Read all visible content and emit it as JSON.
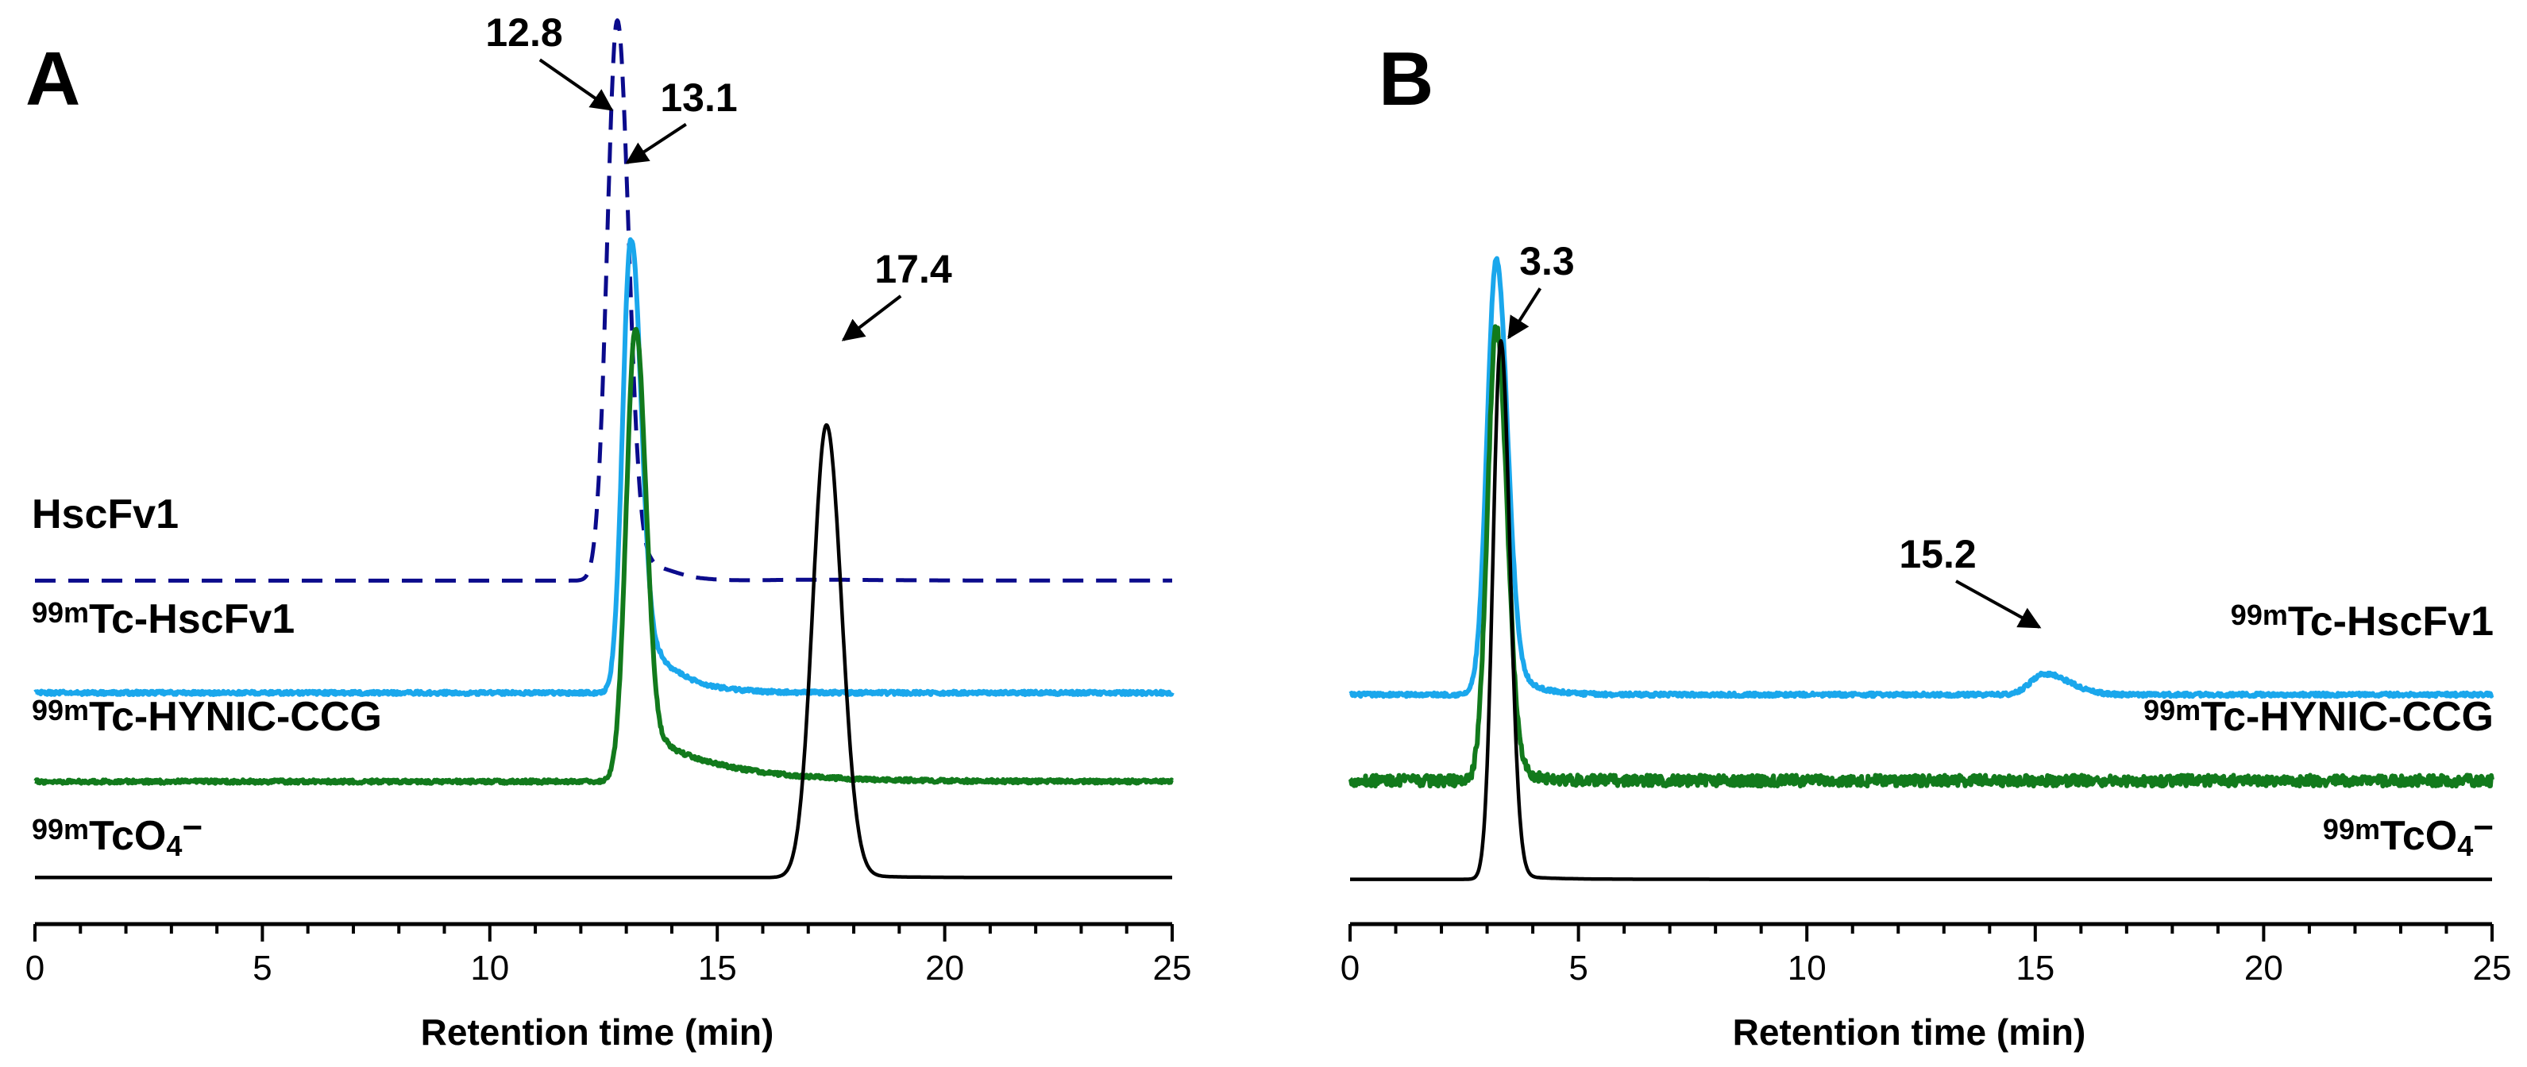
{
  "colors": {
    "HscFv1": "#0b0b8c",
    "99mTc-HscFv1": "#1aa7ec",
    "99mTc-HYNIC-CCG": "#127a1c",
    "99mTcO4": "#000000"
  },
  "chart_data": [
    {
      "panel": "A",
      "type": "line",
      "xlabel": "Retention time (min)",
      "ylabel": "",
      "xlim": [
        0,
        25
      ],
      "ylim": [
        0,
        1
      ],
      "xticks": [
        0,
        5,
        10,
        15,
        20,
        25
      ],
      "xtick_labels": [
        "0",
        "5",
        "10",
        "15",
        "20",
        "25"
      ],
      "series": [
        {
          "key": "hscfv1",
          "label_prefix": "",
          "label_main": "HscFv1",
          "label_sub": "",
          "color_key": "HscFv1",
          "style": "dashed",
          "baseline": 0.376,
          "noise": 0,
          "peaks": [
            {
              "center": 12.8,
              "height": 0.619,
              "width_left": 0.22,
              "width_right": 0.25,
              "tail_height": 0.03,
              "tail_decay": 1.5
            },
            {
              "center": 14.6,
              "height": -0.006,
              "width_left": 0.5,
              "width_right": 1.2,
              "tail_height": 0,
              "tail_decay": 1
            }
          ],
          "x": [
            0,
            12.3,
            12.6,
            12.8,
            13.0,
            13.3,
            13.7,
            14.3,
            15.0,
            16.0,
            18.0,
            20.0,
            25.0
          ],
          "y": [
            0.376,
            0.38,
            0.75,
            0.995,
            0.85,
            0.6,
            0.45,
            0.385,
            0.372,
            0.376,
            0.378,
            0.38,
            0.381
          ]
        },
        {
          "key": "tc_hscfv1",
          "label_prefix": "99m",
          "label_main": "Tc-HscFv1",
          "label_sub": "",
          "color_key": "99mTc-HscFv1",
          "style": "solid",
          "baseline": 0.252,
          "noise": 0.002,
          "peaks": [
            {
              "center": 13.1,
              "height": 0.5,
              "width_left": 0.18,
              "width_right": 0.22,
              "tail_height": 0.1,
              "tail_decay": 0.7
            }
          ],
          "x": [
            0,
            12.4,
            12.8,
            13.1,
            13.5,
            14.0,
            15.0,
            17.0,
            25.0
          ],
          "y": [
            0.252,
            0.26,
            0.6,
            0.752,
            0.55,
            0.33,
            0.26,
            0.25,
            0.248
          ]
        },
        {
          "key": "tc_hynic",
          "label_prefix": "99m",
          "label_main": "Tc-HYNIC-CCG",
          "label_sub": "",
          "color_key": "99mTc-HYNIC-CCG",
          "style": "solid",
          "baseline": 0.154,
          "noise": 0.002,
          "peaks": [
            {
              "center": 13.2,
              "height": 0.5,
              "width_left": 0.2,
              "width_right": 0.23,
              "tail_height": 0.06,
              "tail_decay": 1.6
            }
          ],
          "x": [
            0,
            12.5,
            13.0,
            13.2,
            13.6,
            14.3,
            15.0,
            16.0,
            17.0,
            25.0
          ],
          "y": [
            0.154,
            0.17,
            0.58,
            0.654,
            0.45,
            0.24,
            0.2,
            0.196,
            0.17,
            0.156
          ]
        },
        {
          "key": "tco4",
          "label_prefix": "99m",
          "label_main": "TcO",
          "label_sub": "4",
          "label_suffix": "−",
          "color_key": "99mTcO4",
          "style": "solid",
          "baseline": 0.048,
          "noise": 0,
          "peaks": [
            {
              "center": 17.4,
              "height": 0.5,
              "width_left": 0.3,
              "width_right": 0.33,
              "tail_height": 0.005,
              "tail_decay": 0.8
            }
          ],
          "x": [
            0,
            16.7,
            17.1,
            17.4,
            17.8,
            18.2,
            25.0
          ],
          "y": [
            0.048,
            0.05,
            0.45,
            0.548,
            0.35,
            0.06,
            0.048
          ]
        }
      ],
      "annotations": [
        {
          "text": "12.8",
          "x": 12.8,
          "series": "hscfv1"
        },
        {
          "text": "13.1",
          "x": 13.1,
          "series": "tc_hscfv1"
        },
        {
          "text": "17.4",
          "x": 17.4,
          "series": "tco4"
        }
      ]
    },
    {
      "panel": "B",
      "type": "line",
      "xlabel": "Retention time (min)",
      "ylabel": "",
      "xlim": [
        0,
        25
      ],
      "ylim": [
        0,
        1
      ],
      "xticks": [
        0,
        5,
        10,
        15,
        20,
        25
      ],
      "xtick_labels": [
        "0",
        "5",
        "10",
        "15",
        "20",
        "25"
      ],
      "series": [
        {
          "key": "tc_hscfv1",
          "label_prefix": "99m",
          "label_main": "Tc-HscFv1",
          "label_sub": "",
          "color_key": "99mTc-HscFv1",
          "style": "solid",
          "baseline": 0.25,
          "noise": 0.002,
          "peaks": [
            {
              "center": 3.2,
              "height": 0.48,
              "width_left": 0.2,
              "width_right": 0.24,
              "tail_height": 0.05,
              "tail_decay": 0.5
            },
            {
              "center": 15.2,
              "height": 0.023,
              "width_left": 0.3,
              "width_right": 0.55,
              "tail_height": 0,
              "tail_decay": 1
            }
          ],
          "x": [
            0,
            2.6,
            3.0,
            3.2,
            3.6,
            4.2,
            5.0,
            14.5,
            15.2,
            16.0,
            25.0
          ],
          "y": [
            0.25,
            0.26,
            0.6,
            0.73,
            0.5,
            0.28,
            0.252,
            0.255,
            0.273,
            0.255,
            0.25
          ]
        },
        {
          "key": "tc_hynic",
          "label_prefix": "99m",
          "label_main": "Tc-HYNIC-CCG",
          "label_sub": "",
          "color_key": "99mTc-HYNIC-CCG",
          "style": "solid",
          "baseline": 0.155,
          "noise": 0.006,
          "peaks": [
            {
              "center": 3.2,
              "height": 0.5,
              "width_left": 0.19,
              "width_right": 0.23,
              "tail_height": 0.04,
              "tail_decay": 0.4
            }
          ],
          "x": [
            0,
            2.6,
            3.0,
            3.2,
            3.6,
            4.2,
            5.0,
            25.0
          ],
          "y": [
            0.152,
            0.17,
            0.55,
            0.655,
            0.4,
            0.2,
            0.158,
            0.157
          ]
        },
        {
          "key": "tco4",
          "label_prefix": "99m",
          "label_main": "TcO",
          "label_sub": "4",
          "label_suffix": "−",
          "color_key": "99mTcO4",
          "style": "solid",
          "baseline": 0.046,
          "noise": 0,
          "peaks": [
            {
              "center": 3.3,
              "height": 0.595,
              "width_left": 0.17,
              "width_right": 0.2,
              "tail_height": 0.006,
              "tail_decay": 0.7
            }
          ],
          "x": [
            0,
            2.8,
            3.1,
            3.3,
            3.6,
            4.0,
            25.0
          ],
          "y": [
            0.046,
            0.05,
            0.5,
            0.641,
            0.35,
            0.06,
            0.046
          ]
        }
      ],
      "annotations": [
        {
          "text": "3.3",
          "x": 3.3,
          "series": "tco4"
        },
        {
          "text": "15.2",
          "x": 15.2,
          "series": "tc_hscfv1"
        }
      ]
    }
  ]
}
